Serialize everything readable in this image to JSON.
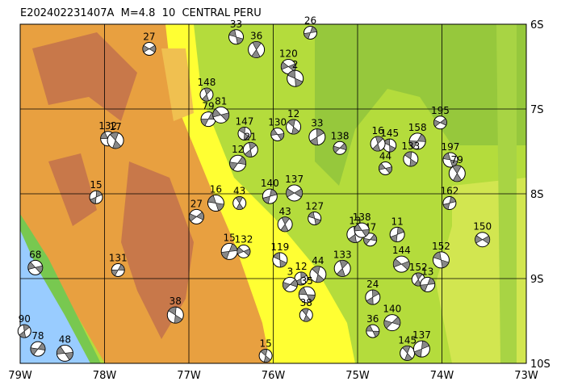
{
  "map": {
    "title": "E202402231407A  M=4.8  10  CENTRAL PERU",
    "xlim": [
      -79,
      -73
    ],
    "ylim": [
      -10,
      -6
    ],
    "xticks": [
      {
        "value": -79,
        "label": "79W"
      },
      {
        "value": -78,
        "label": "78W"
      },
      {
        "value": -77,
        "label": "77W"
      },
      {
        "value": -76,
        "label": "76W"
      },
      {
        "value": -75,
        "label": "75W"
      },
      {
        "value": -74,
        "label": "74W"
      },
      {
        "value": -73,
        "label": "73W"
      }
    ],
    "yticks": [
      {
        "value": -6,
        "label": "6S"
      },
      {
        "value": -7,
        "label": "7S"
      },
      {
        "value": -8,
        "label": "8S"
      },
      {
        "value": -9,
        "label": "9S"
      },
      {
        "value": -10,
        "label": "10S"
      }
    ],
    "events": [
      {
        "lon": -77.47,
        "lat": -6.29,
        "depth": 27
      },
      {
        "lon": -76.44,
        "lat": -6.15,
        "depth": 33
      },
      {
        "lon": -76.2,
        "lat": -6.3,
        "depth": 36
      },
      {
        "lon": -75.56,
        "lat": -6.1,
        "depth": 26
      },
      {
        "lon": -75.82,
        "lat": -6.5,
        "depth": 120
      },
      {
        "lon": -75.74,
        "lat": -6.64,
        "depth": 2
      },
      {
        "lon": -76.79,
        "lat": -6.83,
        "depth": 148
      },
      {
        "lon": -76.77,
        "lat": -7.12,
        "depth": 79
      },
      {
        "lon": -76.62,
        "lat": -7.07,
        "depth": 81
      },
      {
        "lon": -76.34,
        "lat": -7.29,
        "depth": 147
      },
      {
        "lon": -76.27,
        "lat": -7.48,
        "depth": 21
      },
      {
        "lon": -76.42,
        "lat": -7.64,
        "depth": 12
      },
      {
        "lon": -75.95,
        "lat": -7.3,
        "depth": 130
      },
      {
        "lon": -75.76,
        "lat": -7.21,
        "depth": 12
      },
      {
        "lon": -75.48,
        "lat": -7.33,
        "depth": 33
      },
      {
        "lon": -75.21,
        "lat": -7.46,
        "depth": 138
      },
      {
        "lon": -77.96,
        "lat": -7.35,
        "depth": 132
      },
      {
        "lon": -77.87,
        "lat": -7.37,
        "depth": 17
      },
      {
        "lon": -78.1,
        "lat": -8.04,
        "depth": 15
      },
      {
        "lon": -76.91,
        "lat": -8.27,
        "depth": 27
      },
      {
        "lon": -76.68,
        "lat": -8.11,
        "depth": 16
      },
      {
        "lon": -76.4,
        "lat": -8.11,
        "depth": 43
      },
      {
        "lon": -76.04,
        "lat": -8.03,
        "depth": 140
      },
      {
        "lon": -75.75,
        "lat": -7.99,
        "depth": 137
      },
      {
        "lon": -75.51,
        "lat": -8.29,
        "depth": 127
      },
      {
        "lon": -75.86,
        "lat": -8.36,
        "depth": 43
      },
      {
        "lon": -76.52,
        "lat": -8.68,
        "depth": 15
      },
      {
        "lon": -76.35,
        "lat": -8.68,
        "depth": 132
      },
      {
        "lon": -75.92,
        "lat": -8.78,
        "depth": 119
      },
      {
        "lon": -75.18,
        "lat": -8.88,
        "depth": 133
      },
      {
        "lon": -77.84,
        "lat": -8.9,
        "depth": 131
      },
      {
        "lon": -78.82,
        "lat": -8.87,
        "depth": 68
      },
      {
        "lon": -77.16,
        "lat": -9.43,
        "depth": 38
      },
      {
        "lon": -78.95,
        "lat": -9.62,
        "depth": 90
      },
      {
        "lon": -78.79,
        "lat": -9.83,
        "depth": 78
      },
      {
        "lon": -78.47,
        "lat": -9.88,
        "depth": 48
      },
      {
        "lon": -76.09,
        "lat": -9.91,
        "depth": 15
      },
      {
        "lon": -74.82,
        "lat": -9.22,
        "depth": 24
      },
      {
        "lon": -74.59,
        "lat": -9.52,
        "depth": 140
      },
      {
        "lon": -74.82,
        "lat": -9.62,
        "depth": 36
      },
      {
        "lon": -74.41,
        "lat": -9.88,
        "depth": 145
      },
      {
        "lon": -74.24,
        "lat": -9.83,
        "depth": 137
      },
      {
        "lon": -74.02,
        "lat": -7.16,
        "depth": 195
      },
      {
        "lon": -73.9,
        "lat": -7.6,
        "depth": 197
      },
      {
        "lon": -73.82,
        "lat": -7.76,
        "depth": 79
      },
      {
        "lon": -73.91,
        "lat": -8.11,
        "depth": 162
      },
      {
        "lon": -73.52,
        "lat": -8.54,
        "depth": 150
      },
      {
        "lon": -74.01,
        "lat": -8.78,
        "depth": 152
      },
      {
        "lon": -74.28,
        "lat": -9.01,
        "depth": 152
      },
      {
        "lon": -74.17,
        "lat": -9.07,
        "depth": 13
      },
      {
        "lon": -74.48,
        "lat": -8.83,
        "depth": 144
      },
      {
        "lon": -74.62,
        "lat": -7.43,
        "depth": 145
      },
      {
        "lon": -74.76,
        "lat": -7.41,
        "depth": 16
      },
      {
        "lon": -74.29,
        "lat": -7.38,
        "depth": 158
      },
      {
        "lon": -74.67,
        "lat": -7.7,
        "depth": 44
      },
      {
        "lon": -74.37,
        "lat": -7.59,
        "depth": 133
      },
      {
        "lon": -75.03,
        "lat": -8.48,
        "depth": 13
      },
      {
        "lon": -74.85,
        "lat": -8.54,
        "depth": 47
      },
      {
        "lon": -74.95,
        "lat": -8.43,
        "depth": 138
      },
      {
        "lon": -75.47,
        "lat": -8.95,
        "depth": 44
      },
      {
        "lon": -75.67,
        "lat": -9.0,
        "depth": 12
      },
      {
        "lon": -75.8,
        "lat": -9.07,
        "depth": 3
      },
      {
        "lon": -75.6,
        "lat": -9.19,
        "depth": 35
      },
      {
        "lon": -75.61,
        "lat": -9.43,
        "depth": 38
      },
      {
        "lon": -74.53,
        "lat": -8.48,
        "depth": 11
      }
    ]
  }
}
